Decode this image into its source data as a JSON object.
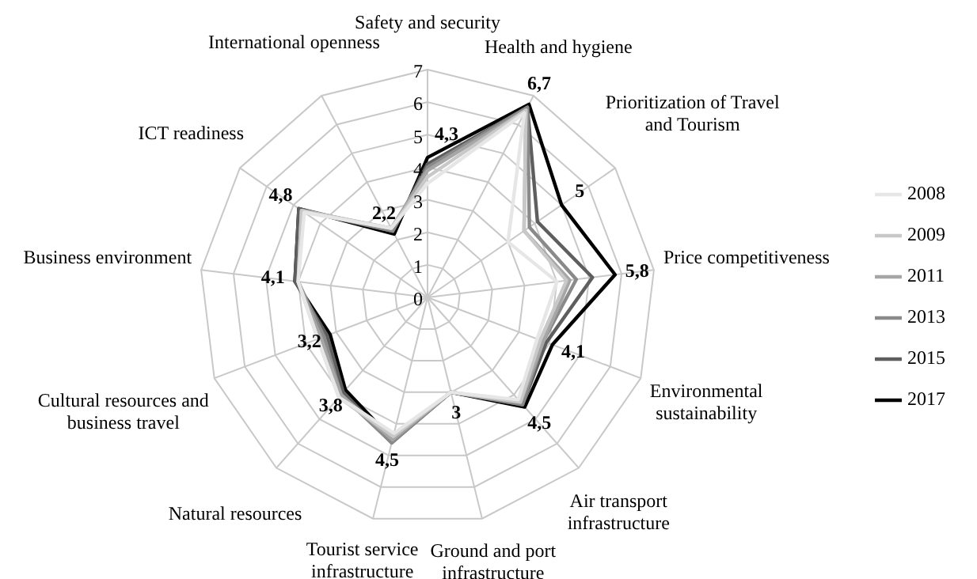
{
  "chart_data": {
    "type": "radar",
    "categories": [
      "Safety and security",
      "Health and hygiene",
      "Prioritization of Travel and Tourism",
      "Price competitiveness",
      "Environmental sustainability",
      "Air transport infrastructure",
      "Ground and port infrastructure",
      "Tourist service infrastructure",
      "Natural resources",
      "Cultural resources and business travel",
      "Business environment",
      "ICT readiness",
      "International openness"
    ],
    "series": [
      {
        "name": "2008",
        "color": "#e6e6e6",
        "values": [
          3.5,
          6.4,
          3.0,
          4.0,
          3.6,
          4.2,
          3.0,
          4.3,
          4.1,
          3.6,
          4.0,
          4.6,
          2.4
        ]
      },
      {
        "name": "2009",
        "color": "#c8c8c8",
        "values": [
          3.7,
          6.5,
          3.6,
          4.3,
          3.7,
          4.3,
          3.0,
          4.4,
          4.1,
          3.6,
          4.0,
          4.7,
          2.4
        ]
      },
      {
        "name": "2011",
        "color": "#a6a6a6",
        "values": [
          3.9,
          6.5,
          3.6,
          4.4,
          3.8,
          4.3,
          3.0,
          4.5,
          4.0,
          3.5,
          4.0,
          4.7,
          2.4
        ]
      },
      {
        "name": "2013",
        "color": "#8a8a8a",
        "values": [
          4.0,
          6.6,
          3.8,
          4.6,
          3.8,
          4.4,
          3.0,
          4.6,
          4.0,
          3.4,
          4.0,
          4.7,
          2.3
        ]
      },
      {
        "name": "2015",
        "color": "#5e5e5e",
        "values": [
          4.1,
          6.6,
          4.1,
          5.1,
          3.9,
          4.4,
          3.0,
          4.6,
          3.9,
          3.3,
          4.1,
          4.8,
          2.3
        ]
      },
      {
        "name": "2017",
        "color": "#000000",
        "values": [
          4.3,
          6.7,
          5,
          5.8,
          4.1,
          4.5,
          3,
          4.5,
          3.8,
          3.2,
          4.1,
          4.8,
          2.2
        ],
        "value_labels": [
          "4,3",
          "6,7",
          "5",
          "5,8",
          "4,1",
          "4,5",
          "3",
          "4,5",
          "3,8",
          "3,2",
          "4,1",
          "4,8",
          "2,2"
        ]
      }
    ],
    "ylim": [
      0,
      7
    ],
    "yticks": [
      0,
      1,
      2,
      3,
      4,
      5,
      6,
      7
    ],
    "grid": true,
    "legend": "right",
    "marker": "none",
    "line_style": "solid"
  }
}
